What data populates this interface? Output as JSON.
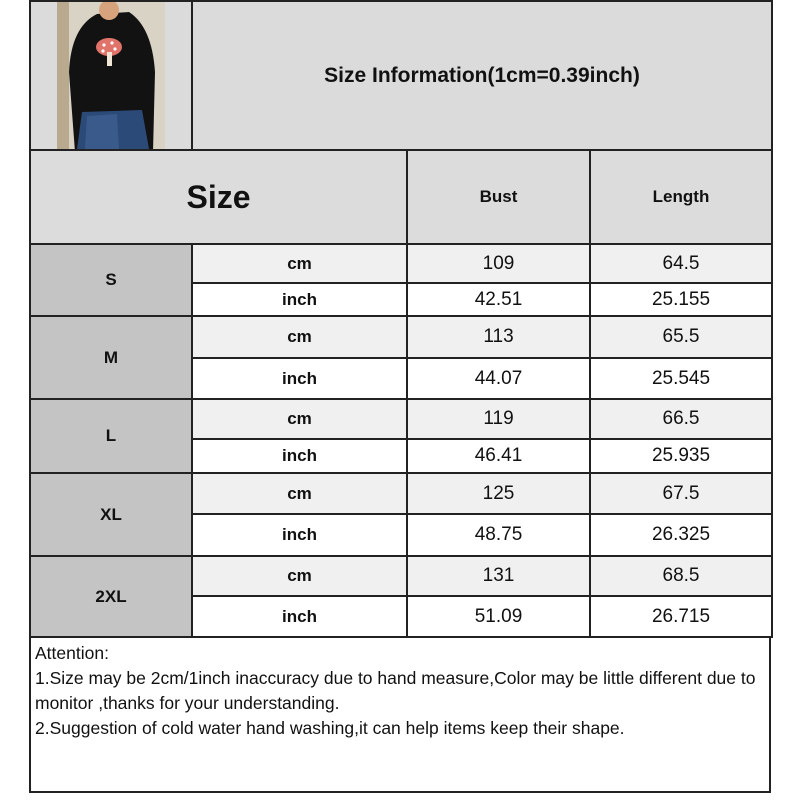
{
  "title": "Size Information(1cm=0.39inch)",
  "header": {
    "size": "Size",
    "bust": "Bust",
    "length": "Length"
  },
  "rows": [
    {
      "size": "S",
      "cm": {
        "unit": "cm",
        "bust": "109",
        "length": "64.5"
      },
      "inch": {
        "unit": "inch",
        "bust": "42.51",
        "length": "25.155"
      }
    },
    {
      "size": "M",
      "cm": {
        "unit": "cm",
        "bust": "113",
        "length": "65.5"
      },
      "inch": {
        "unit": "inch",
        "bust": "44.07",
        "length": "25.545"
      }
    },
    {
      "size": "L",
      "cm": {
        "unit": "cm",
        "bust": "119",
        "length": "66.5"
      },
      "inch": {
        "unit": "inch",
        "bust": "46.41",
        "length": "25.935"
      }
    },
    {
      "size": "XL",
      "cm": {
        "unit": "cm",
        "bust": "125",
        "length": "67.5"
      },
      "inch": {
        "unit": "inch",
        "bust": "48.75",
        "length": "26.325"
      }
    },
    {
      "size": "2XL",
      "cm": {
        "unit": "cm",
        "bust": "131",
        "length": "68.5"
      },
      "inch": {
        "unit": "inch",
        "bust": "51.09",
        "length": "26.715"
      }
    }
  ],
  "attention": {
    "heading": "Attention:",
    "lines": [
      "1.Size may be 2cm/1inch inaccuracy due to hand measure,Color may be little different due to monitor ,thanks for your understanding.",
      "2.Suggestion of cold water hand washing,it can help items keep their shape."
    ]
  }
}
